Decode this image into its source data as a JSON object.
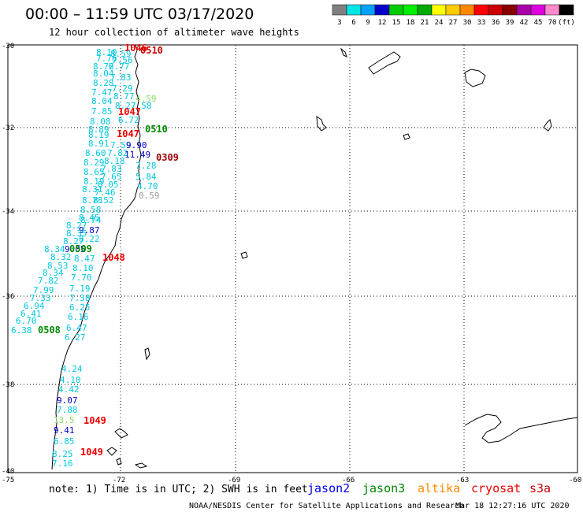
{
  "header": {
    "title": "00:00 – 11:59 UTC 03/17/2020",
    "subtitle": "12 hour collection of altimeter wave heights"
  },
  "legend": {
    "colors": [
      "#808080",
      "#00e5e5",
      "#00a0ff",
      "#0000cc",
      "#00cc00",
      "#00ee00",
      "#00aa00",
      "#ffff00",
      "#ffcc00",
      "#ff8800",
      "#ff0000",
      "#cc0000",
      "#880000",
      "#aa00aa",
      "#dd00dd",
      "#ff88cc",
      "#000000"
    ],
    "labels": [
      "3",
      "6",
      "9",
      "12",
      "15",
      "18",
      "21",
      "24",
      "27",
      "30",
      "33",
      "36",
      "39",
      "42",
      "45",
      "70",
      "(ft)"
    ]
  },
  "axes": {
    "y_labels": [
      "-30",
      "-32",
      "-34",
      "-36",
      "-38",
      "-40"
    ],
    "x_labels": [
      "-75",
      "-72",
      "-69",
      "-66",
      "-63",
      "-60"
    ]
  },
  "footer": {
    "note": "note: 1) Time is in UTC; 2) SWH is in feet",
    "satellites": [
      {
        "name": "jason2",
        "color": "#0000ee"
      },
      {
        "name": "jason3",
        "color": "#008800"
      },
      {
        "name": "altika",
        "color": "#ff8800"
      },
      {
        "name": "cryosat",
        "color": "#ee0000"
      },
      {
        "name": "s3a",
        "color": "#cc0000"
      }
    ],
    "credit": "NOAA/NESDIS Center for Satellite Applications and Research",
    "timestamp": "Mar 18 12:27:16 UTC 2020"
  },
  "observations": [
    {
      "text": "1046",
      "color": "#ee0000"
    },
    {
      "text": "0510",
      "color": "#cc0000"
    },
    {
      "text": "8.10",
      "color": "#00c8e0"
    },
    {
      "text": "8.59",
      "color": "#00c8e0"
    },
    {
      "text": "7.76",
      "color": "#00c8e0"
    },
    {
      "text": "7.56",
      "color": "#00c8e0"
    },
    {
      "text": "8.72",
      "color": "#00c8e0"
    },
    {
      "text": "6.77",
      "color": "#00c8e0"
    },
    {
      "text": "8.04",
      "color": "#00c8e0"
    },
    {
      "text": "7.83",
      "color": "#00c8e0"
    },
    {
      "text": "8.28",
      "color": "#00c8e0"
    },
    {
      "text": "7.29",
      "color": "#00c8e0"
    },
    {
      "text": "7.47",
      "color": "#00c8e0"
    },
    {
      "text": "8.77",
      "color": "#00c8e0"
    },
    {
      "text": "8.04",
      "color": "#00c8e0"
    },
    {
      "text": "4.59",
      "color": "#88dd66"
    },
    {
      "text": "8.27",
      "color": "#00c8e0"
    },
    {
      "text": "7.58",
      "color": "#00c8e0"
    },
    {
      "text": "7.85",
      "color": "#00c8e0"
    },
    {
      "text": "1047",
      "color": "#ee0000"
    },
    {
      "text": "8.08",
      "color": "#00c8e0"
    },
    {
      "text": "6.72",
      "color": "#00c8e0"
    },
    {
      "text": "8.89",
      "color": "#00c8e0"
    },
    {
      "text": "0510",
      "color": "#008800"
    },
    {
      "text": "8.19",
      "color": "#00c8e0"
    },
    {
      "text": "1047",
      "color": "#ee0000"
    },
    {
      "text": "8.91",
      "color": "#00c8e0"
    },
    {
      "text": "7.59",
      "color": "#00c8e0"
    },
    {
      "text": "9.90",
      "color": "#0000cc"
    },
    {
      "text": "8.60",
      "color": "#00c8e0"
    },
    {
      "text": "7.82",
      "color": "#00c8e0"
    },
    {
      "text": "11.49",
      "color": "#0000cc"
    },
    {
      "text": "0309",
      "color": "#990000"
    },
    {
      "text": "8.29",
      "color": "#00c8e0"
    },
    {
      "text": "8.18",
      "color": "#00c8e0"
    },
    {
      "text": "7.28",
      "color": "#00c8e0"
    },
    {
      "text": "8.65",
      "color": "#00c8e0"
    },
    {
      "text": "7.83",
      "color": "#00c8e0"
    },
    {
      "text": "5.84",
      "color": "#00c8e0"
    },
    {
      "text": "8.19",
      "color": "#00c8e0"
    },
    {
      "text": "7.65",
      "color": "#00c8e0"
    },
    {
      "text": "4.70",
      "color": "#00c8e0"
    },
    {
      "text": "8.31",
      "color": "#00c8e0"
    },
    {
      "text": "8.05",
      "color": "#00c8e0"
    },
    {
      "text": "7.46",
      "color": "#00c8e0"
    },
    {
      "text": "0.59",
      "color": "#999999"
    },
    {
      "text": "8.78",
      "color": "#00c8e0"
    },
    {
      "text": "8.52",
      "color": "#00c8e0"
    },
    {
      "text": "8.58",
      "color": "#00c8e0"
    },
    {
      "text": "8.45",
      "color": "#00c8e0"
    },
    {
      "text": "8.74",
      "color": "#00c8e0"
    },
    {
      "text": "8.27",
      "color": "#00c8e0"
    },
    {
      "text": "9.87",
      "color": "#0000cc"
    },
    {
      "text": "8.35",
      "color": "#00c8e0"
    },
    {
      "text": "8.22",
      "color": "#00c8e0"
    },
    {
      "text": "8.27",
      "color": "#00c8e0"
    },
    {
      "text": "8.34",
      "color": "#00c8e0"
    },
    {
      "text": "9.05",
      "color": "#0000cc"
    },
    {
      "text": "0509",
      "color": "#008800"
    },
    {
      "text": "8.32",
      "color": "#00c8e0"
    },
    {
      "text": "8.47",
      "color": "#00c8e0"
    },
    {
      "text": "1048",
      "color": "#ee0000"
    },
    {
      "text": "8.53",
      "color": "#00c8e0"
    },
    {
      "text": "8.10",
      "color": "#00c8e0"
    },
    {
      "text": "8.34",
      "color": "#00c8e0"
    },
    {
      "text": "7.70",
      "color": "#00c8e0"
    },
    {
      "text": "7.82",
      "color": "#00c8e0"
    },
    {
      "text": "7.19",
      "color": "#00c8e0"
    },
    {
      "text": "7.99",
      "color": "#00c8e0"
    },
    {
      "text": "7.38",
      "color": "#00c8e0"
    },
    {
      "text": "7.33",
      "color": "#00c8e0"
    },
    {
      "text": "6.25",
      "color": "#00c8e0"
    },
    {
      "text": "6.94",
      "color": "#00c8e0"
    },
    {
      "text": "6.16",
      "color": "#00c8e0"
    },
    {
      "text": "6.41",
      "color": "#00c8e0"
    },
    {
      "text": "6.70",
      "color": "#00c8e0"
    },
    {
      "text": "6.38",
      "color": "#00c8e0"
    },
    {
      "text": "0508",
      "color": "#008800"
    },
    {
      "text": "6.47",
      "color": "#00c8e0"
    },
    {
      "text": "6.27",
      "color": "#00c8e0"
    },
    {
      "text": "4.24",
      "color": "#00c8e0"
    },
    {
      "text": "4.10",
      "color": "#00c8e0"
    },
    {
      "text": "4.42",
      "color": "#00c8e0"
    },
    {
      "text": "9.07",
      "color": "#0000cc"
    },
    {
      "text": "7.88",
      "color": "#00c8e0"
    },
    {
      "text": "13.5",
      "color": "#88dd66"
    },
    {
      "text": "1049",
      "color": "#ee0000"
    },
    {
      "text": "9.41",
      "color": "#0000cc"
    },
    {
      "text": "6.85",
      "color": "#00c8e0"
    },
    {
      "text": "8.25",
      "color": "#00c8e0"
    },
    {
      "text": "1049",
      "color": "#ee0000"
    },
    {
      "text": "7.16",
      "color": "#00c8e0"
    }
  ]
}
